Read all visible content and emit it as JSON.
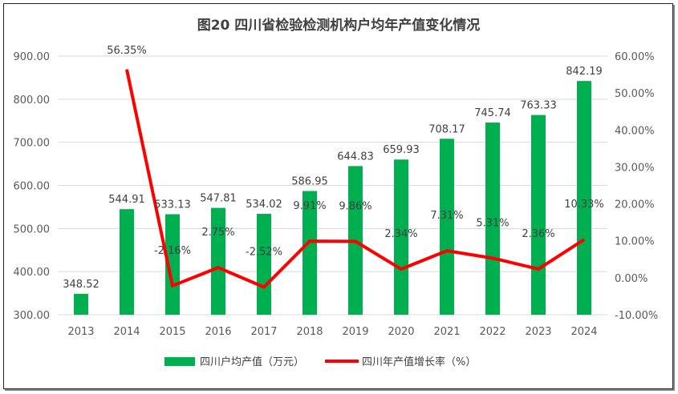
{
  "chart_data": {
    "type": "bar+line",
    "title": "图20   四川省检验检测机构户均年产值变化情况",
    "categories": [
      "2013",
      "2014",
      "2015",
      "2016",
      "2017",
      "2018",
      "2019",
      "2020",
      "2021",
      "2022",
      "2023",
      "2024"
    ],
    "series": [
      {
        "name": "四川户均产值（万元）",
        "type": "bar",
        "axis": "left",
        "color": "#00B050",
        "values": [
          348.52,
          544.91,
          533.13,
          547.81,
          534.02,
          586.95,
          644.83,
          659.93,
          708.17,
          745.74,
          763.33,
          842.19
        ],
        "labels": [
          "348.52",
          "544.91",
          "533.13",
          "547.81",
          "534.02",
          "586.95",
          "644.83",
          "659.93",
          "708.17",
          "745.74",
          "763.33",
          "842.19"
        ]
      },
      {
        "name": "四川年产值增长率（%）",
        "type": "line",
        "axis": "right",
        "color": "#FF0000",
        "values": [
          null,
          56.35,
          -2.16,
          2.75,
          -2.52,
          9.91,
          9.86,
          2.34,
          7.31,
          5.31,
          2.36,
          10.33
        ],
        "labels": [
          "",
          "56.35%",
          "-2.16%",
          "2.75%",
          "-2.52%",
          "9.91%",
          "9.86%",
          "2.34%",
          "7.31%",
          "5.31%",
          "2.36%",
          "10.33%"
        ]
      }
    ],
    "y_left": {
      "range": [
        300,
        900
      ],
      "ticks": [
        "300.00",
        "400.00",
        "500.00",
        "600.00",
        "700.00",
        "800.00",
        "900.00"
      ]
    },
    "y_right": {
      "range": [
        -10,
        60
      ],
      "ticks": [
        "-10.00%",
        "0.00%",
        "10.00%",
        "20.00%",
        "30.00%",
        "40.00%",
        "50.00%",
        "60.00%"
      ]
    },
    "grid": true,
    "legend": "bottom"
  }
}
